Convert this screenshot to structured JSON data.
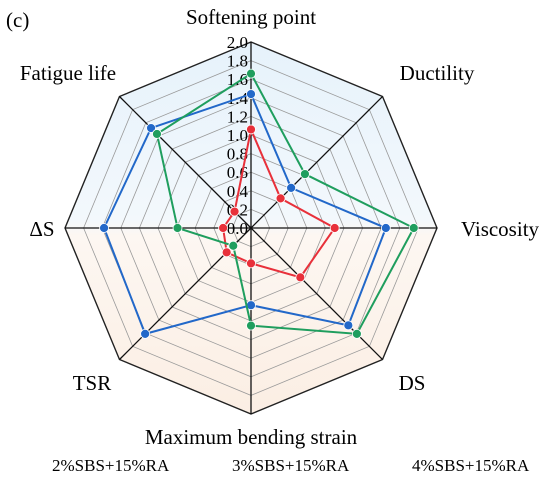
{
  "panel_label": "(c)",
  "chart_data": {
    "type": "radar",
    "title": "",
    "axes": [
      "Softening point",
      "Ductility",
      "Viscosity",
      "DS",
      "Maximum bending strain",
      "TSR",
      "ΔS",
      "Fatigue life"
    ],
    "range": [
      0.0,
      2.0
    ],
    "ticks": [
      "0.0",
      "0.2",
      "0.4",
      "0.6",
      "0.8",
      "1.0",
      "1.2",
      "1.4",
      "1.6",
      "1.8",
      "2.0"
    ],
    "grid": true,
    "band_colors": {
      "upper": "#e6f2fb",
      "lower": "#fbeee3"
    },
    "legend_position": "bottom",
    "legend": [
      "2%SBS+15%RA",
      "3%SBS+15%RA",
      "4%SBS+15%RA"
    ],
    "series": [
      {
        "color": "#e8303a",
        "values": [
          1.06,
          0.45,
          0.9,
          0.75,
          0.38,
          0.37,
          0.3,
          0.25
        ]
      },
      {
        "color": "#2268c9",
        "values": [
          1.44,
          0.61,
          1.45,
          1.48,
          0.83,
          1.61,
          1.58,
          1.52
        ]
      },
      {
        "color": "#1f9e5e",
        "values": [
          1.66,
          0.82,
          1.75,
          1.61,
          1.05,
          0.27,
          0.79,
          1.43
        ]
      }
    ]
  }
}
